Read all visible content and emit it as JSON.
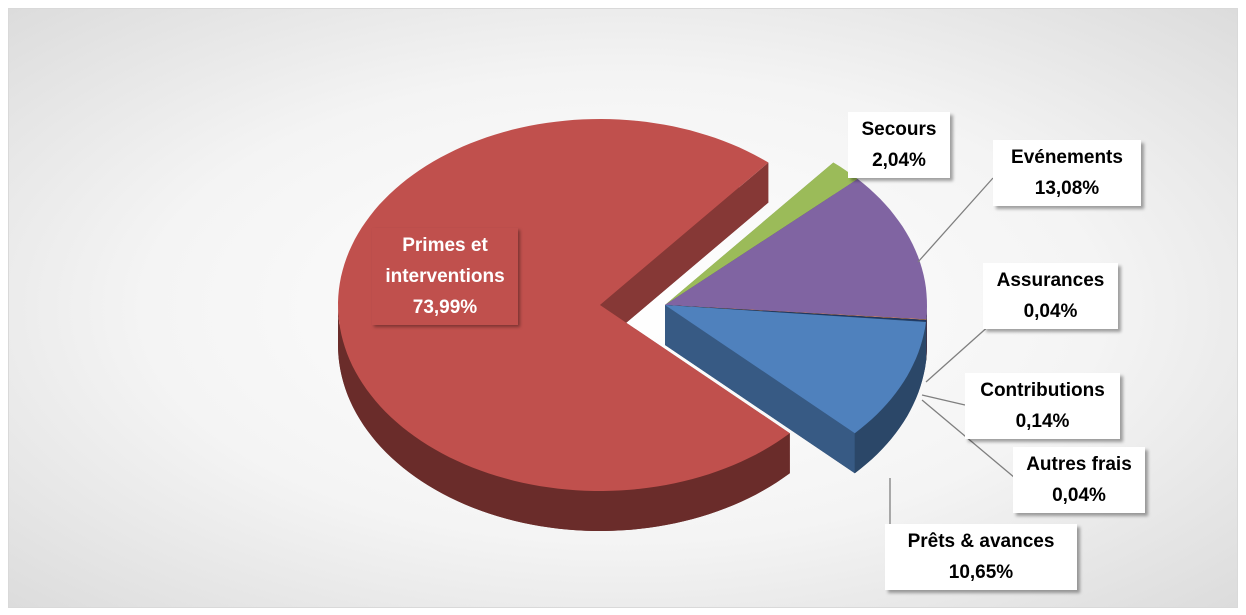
{
  "chart_data": {
    "type": "pie",
    "categories": [
      "Secours",
      "Evénements",
      "Assurances",
      "Contributions",
      "Autres frais",
      "Prêts & avances",
      "Primes et interventions"
    ],
    "values": [
      2.04,
      13.08,
      0.04,
      0.14,
      0.04,
      10.65,
      73.99
    ],
    "value_labels": [
      "2,04%",
      "13,08%",
      "0,04%",
      "0,14%",
      "0,04%",
      "10,65%",
      "73,99%"
    ],
    "colors": [
      "#9bbb59",
      "#8064a2",
      "#f79646",
      "#1f3864",
      "#2c4d75",
      "#4f81bd",
      "#c0504d"
    ]
  }
}
